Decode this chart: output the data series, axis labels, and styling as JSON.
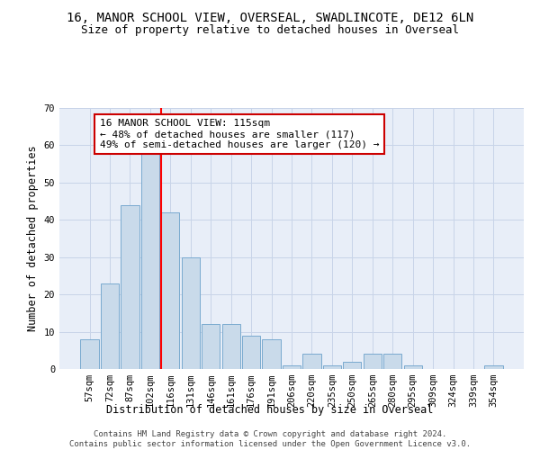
{
  "title1": "16, MANOR SCHOOL VIEW, OVERSEAL, SWADLINCOTE, DE12 6LN",
  "title2": "Size of property relative to detached houses in Overseal",
  "xlabel": "Distribution of detached houses by size in Overseal",
  "ylabel": "Number of detached properties",
  "categories": [
    "57sqm",
    "72sqm",
    "87sqm",
    "102sqm",
    "116sqm",
    "131sqm",
    "146sqm",
    "161sqm",
    "176sqm",
    "191sqm",
    "206sqm",
    "220sqm",
    "235sqm",
    "250sqm",
    "265sqm",
    "280sqm",
    "295sqm",
    "309sqm",
    "324sqm",
    "339sqm",
    "354sqm"
  ],
  "values": [
    8,
    23,
    44,
    58,
    42,
    30,
    12,
    12,
    9,
    8,
    1,
    4,
    1,
    2,
    4,
    4,
    1,
    0,
    0,
    0,
    1
  ],
  "bar_color": "#c9daea",
  "bar_edge_color": "#7aaad0",
  "reference_line_idx": 4,
  "annotation_line1": "16 MANOR SCHOOL VIEW: 115sqm",
  "annotation_line2": "← 48% of detached houses are smaller (117)",
  "annotation_line3": "49% of semi-detached houses are larger (120) →",
  "annotation_box_color": "#cc0000",
  "ylim": [
    0,
    70
  ],
  "yticks": [
    0,
    10,
    20,
    30,
    40,
    50,
    60,
    70
  ],
  "footnote": "Contains HM Land Registry data © Crown copyright and database right 2024.\nContains public sector information licensed under the Open Government Licence v3.0.",
  "bg_color": "#ffffff",
  "grid_color": "#c8d4e8",
  "title1_fontsize": 10,
  "title2_fontsize": 9,
  "xlabel_fontsize": 8.5,
  "ylabel_fontsize": 8.5,
  "tick_fontsize": 7.5,
  "annotation_fontsize": 8,
  "footnote_fontsize": 6.5
}
